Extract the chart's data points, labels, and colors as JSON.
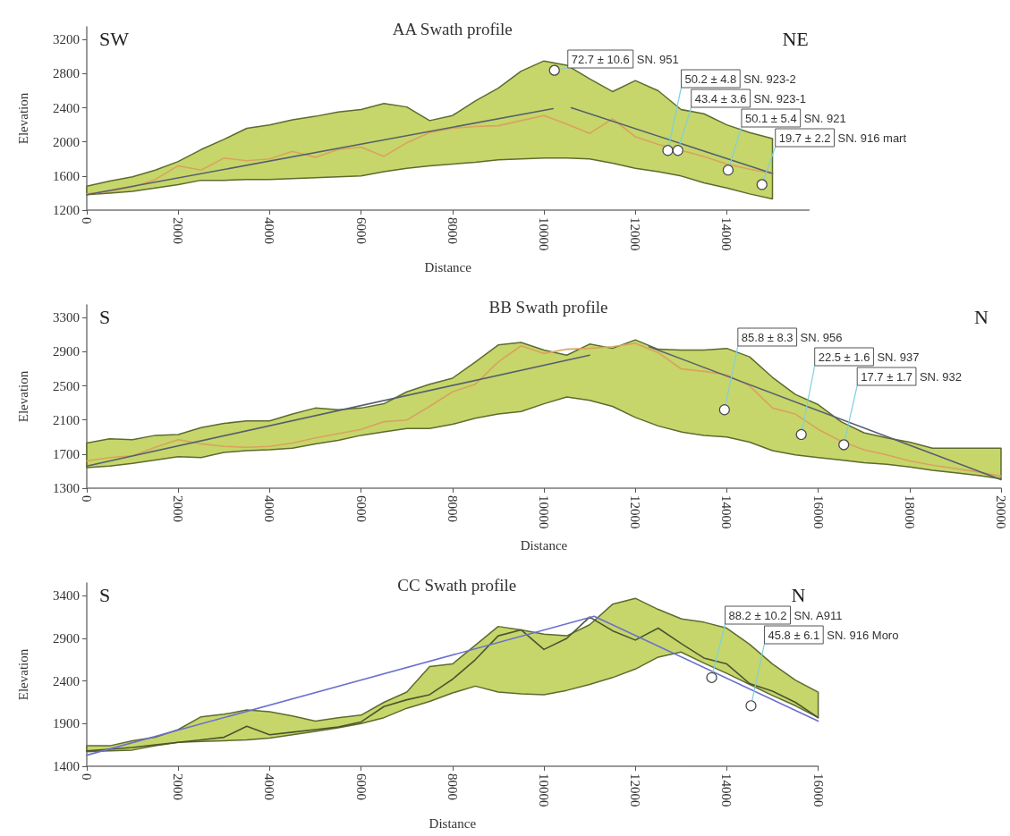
{
  "chart_data": [
    {
      "type": "line",
      "title": "AA Swath profile",
      "xlabel": "Distance",
      "ylabel": "Elevation",
      "xlim": [
        0,
        15800
      ],
      "xticks": [
        0,
        2000,
        4000,
        6000,
        8000,
        10000,
        12000,
        14000
      ],
      "ylim": [
        1200,
        3350
      ],
      "yticks": [
        1200,
        1600,
        2000,
        2400,
        2800,
        3200
      ],
      "x": [
        0,
        500,
        1000,
        1500,
        2000,
        2500,
        3000,
        3500,
        4000,
        4500,
        5000,
        5500,
        6000,
        6500,
        7000,
        7500,
        8000,
        8500,
        9000,
        9500,
        10000,
        10500,
        11000,
        11500,
        12000,
        12500,
        13000,
        13500,
        14000,
        14500,
        15000
      ],
      "series": [
        {
          "type": "line",
          "color": "#d9a35e",
          "values": [
            1390,
            1420,
            1470,
            1560,
            1720,
            1670,
            1810,
            1780,
            1800,
            1890,
            1820,
            1910,
            1940,
            1830,
            1990,
            2110,
            2160,
            2180,
            2190,
            2250,
            2310,
            2210,
            2100,
            2270,
            2060,
            1970,
            1900,
            1830,
            1740,
            1680,
            1630
          ],
          "upper": [
            1480,
            1540,
            1590,
            1670,
            1770,
            1910,
            2030,
            2160,
            2200,
            2260,
            2300,
            2350,
            2380,
            2450,
            2410,
            2250,
            2310,
            2480,
            2630,
            2830,
            2950,
            2900,
            2740,
            2590,
            2720,
            2600,
            2380,
            2330,
            2200,
            2110,
            2040
          ],
          "lower": [
            1380,
            1400,
            1420,
            1460,
            1500,
            1550,
            1550,
            1560,
            1560,
            1570,
            1580,
            1590,
            1600,
            1650,
            1690,
            1720,
            1740,
            1760,
            1790,
            1800,
            1810,
            1810,
            1800,
            1750,
            1690,
            1650,
            1600,
            1520,
            1460,
            1390,
            1330
          ]
        },
        {
          "type": "line",
          "color": "#56606e",
          "x": [
            0,
            10200
          ],
          "values": [
            1380,
            2390
          ]
        },
        {
          "type": "line",
          "color": "#56606e",
          "x": [
            10600,
            15000
          ],
          "values": [
            2400,
            1630
          ]
        },
        {
          "type": "scatter",
          "marker": "circle",
          "color": "#ffffff",
          "x": [
            10230,
            12710,
            12930,
            14030,
            14770
          ],
          "values": [
            2840,
            1900,
            1900,
            1670,
            1500
          ]
        }
      ],
      "annotations": [
        "SW",
        "NE",
        "SN. 951",
        "SN. 923-2",
        "SN. 923-1",
        "SN. 921",
        "SN. 916 mart",
        {
          "text": "72.7 ± 10.6",
          "x": 10230,
          "y": 2840
        },
        {
          "text": "50.2 ± 4.8",
          "x": 12710,
          "y": 1900
        },
        {
          "text": "43.4 ± 3.6",
          "x": 12930,
          "y": 1900
        },
        {
          "text": "50.1 ± 5.4",
          "x": 14030,
          "y": 1670
        },
        {
          "text": "19.7 ± 2.2",
          "x": 14770,
          "y": 1500
        }
      ]
    },
    {
      "type": "line",
      "title": "BB Swath profile",
      "xlabel": "Distance",
      "ylabel": "Elevation",
      "xlim": [
        0,
        20000
      ],
      "xticks": [
        0,
        2000,
        4000,
        6000,
        8000,
        10000,
        12000,
        14000,
        16000,
        18000,
        20000
      ],
      "ylim": [
        1300,
        3450
      ],
      "yticks": [
        1300,
        1700,
        2100,
        2500,
        2900,
        3300
      ],
      "x": [
        0,
        500,
        1000,
        1500,
        2000,
        2500,
        3000,
        3500,
        4000,
        4500,
        5000,
        5500,
        6000,
        6500,
        7000,
        7500,
        8000,
        8500,
        9000,
        9500,
        10000,
        10500,
        11000,
        11500,
        12000,
        12500,
        13000,
        13500,
        14000,
        14500,
        15000,
        15500,
        16000,
        16500,
        17000,
        17500,
        18000,
        18500,
        19000,
        19500,
        20000
      ],
      "series": [
        {
          "type": "line",
          "color": "#d9a35e",
          "values": [
            1620,
            1660,
            1680,
            1780,
            1870,
            1820,
            1790,
            1780,
            1790,
            1830,
            1890,
            1940,
            1990,
            2080,
            2100,
            2260,
            2430,
            2520,
            2780,
            2970,
            2880,
            2930,
            2940,
            2960,
            3000,
            2890,
            2700,
            2670,
            2630,
            2500,
            2240,
            2170,
            1990,
            1850,
            1750,
            1690,
            1620,
            1570,
            1530,
            1490,
            1440
          ],
          "upper": [
            1830,
            1880,
            1870,
            1920,
            1930,
            2010,
            2060,
            2090,
            2090,
            2170,
            2240,
            2220,
            2240,
            2290,
            2430,
            2520,
            2590,
            2780,
            2980,
            3010,
            2920,
            2860,
            2990,
            2940,
            3040,
            2930,
            2920,
            2920,
            2940,
            2840,
            2600,
            2400,
            2280,
            2080,
            1950,
            1890,
            1840,
            1770,
            1770,
            1770,
            1770
          ],
          "lower": [
            1540,
            1560,
            1590,
            1630,
            1670,
            1660,
            1720,
            1740,
            1750,
            1770,
            1820,
            1860,
            1920,
            1960,
            2000,
            2000,
            2050,
            2120,
            2170,
            2200,
            2290,
            2370,
            2330,
            2260,
            2130,
            2030,
            1960,
            1920,
            1900,
            1840,
            1740,
            1690,
            1660,
            1630,
            1600,
            1580,
            1550,
            1510,
            1480,
            1450,
            1410
          ]
        },
        {
          "type": "line",
          "color": "#56606e",
          "x": [
            0,
            11000
          ],
          "values": [
            1560,
            2860
          ]
        },
        {
          "type": "line",
          "color": "#56606e",
          "x": [
            12300,
            20000
          ],
          "values": [
            2960,
            1400
          ]
        },
        {
          "type": "scatter",
          "marker": "circle",
          "color": "#ffffff",
          "x": [
            13950,
            15630,
            16560
          ],
          "values": [
            2220,
            1930,
            1810
          ]
        }
      ],
      "annotations": [
        "S",
        "N",
        "SN. 956",
        "SN. 937",
        "SN. 932",
        {
          "text": "85.8 ± 8.3",
          "x": 13950,
          "y": 2220
        },
        {
          "text": "22.5 ± 1.6",
          "x": 15630,
          "y": 1930
        },
        {
          "text": "17.7 ± 1.7",
          "x": 16560,
          "y": 1810
        }
      ]
    },
    {
      "type": "line",
      "title": "CC Swath profile",
      "xlabel": "Distance",
      "ylabel": "Elevation",
      "xlim": [
        0,
        16000
      ],
      "xticks": [
        0,
        2000,
        4000,
        6000,
        8000,
        10000,
        12000,
        14000,
        16000
      ],
      "ylim": [
        1400,
        3550
      ],
      "yticks": [
        1400,
        1900,
        2400,
        2900,
        3400
      ],
      "x": [
        0,
        500,
        1000,
        1500,
        2000,
        2500,
        3000,
        3500,
        4000,
        4500,
        5000,
        5500,
        6000,
        6500,
        7000,
        7500,
        8000,
        8500,
        9000,
        9500,
        10000,
        10500,
        11000,
        11500,
        12000,
        12500,
        13000,
        13500,
        14000,
        14500,
        15000,
        15500,
        16000
      ],
      "series": [
        {
          "type": "line",
          "color": "#4a5530",
          "values": [
            1580,
            1600,
            1620,
            1650,
            1680,
            1710,
            1740,
            1870,
            1770,
            1800,
            1830,
            1860,
            1920,
            2100,
            2180,
            2240,
            2420,
            2650,
            2930,
            3000,
            2770,
            2900,
            3150,
            2990,
            2880,
            3020,
            2840,
            2670,
            2600,
            2370,
            2280,
            2150,
            1970
          ],
          "upper": [
            1640,
            1640,
            1700,
            1740,
            1830,
            1980,
            2010,
            2060,
            2040,
            1990,
            1930,
            1970,
            2000,
            2150,
            2270,
            2570,
            2600,
            2820,
            3040,
            3000,
            2950,
            2930,
            3060,
            3300,
            3370,
            3240,
            3130,
            3090,
            3020,
            2830,
            2600,
            2410,
            2270
          ],
          "lower": [
            1570,
            1580,
            1590,
            1640,
            1680,
            1690,
            1700,
            1710,
            1730,
            1770,
            1810,
            1850,
            1900,
            1970,
            2080,
            2160,
            2260,
            2340,
            2270,
            2250,
            2240,
            2290,
            2360,
            2440,
            2540,
            2680,
            2740,
            2610,
            2490,
            2360,
            2230,
            2110,
            1970
          ]
        },
        {
          "type": "line",
          "color": "#6b6fd0",
          "x": [
            0,
            11100,
            16000
          ],
          "values": [
            1530,
            3160,
            1930
          ]
        },
        {
          "type": "scatter",
          "marker": "circle",
          "color": "#ffffff",
          "x": [
            13670,
            14530
          ],
          "values": [
            2440,
            2110
          ]
        }
      ],
      "annotations": [
        "S",
        "N",
        "SN. A911",
        "SN. 916 Moro",
        {
          "text": "88.2 ± 10.2",
          "x": 13670,
          "y": 2440
        },
        {
          "text": "45.8 ± 6.1",
          "x": 14530,
          "y": 2110
        }
      ]
    }
  ]
}
